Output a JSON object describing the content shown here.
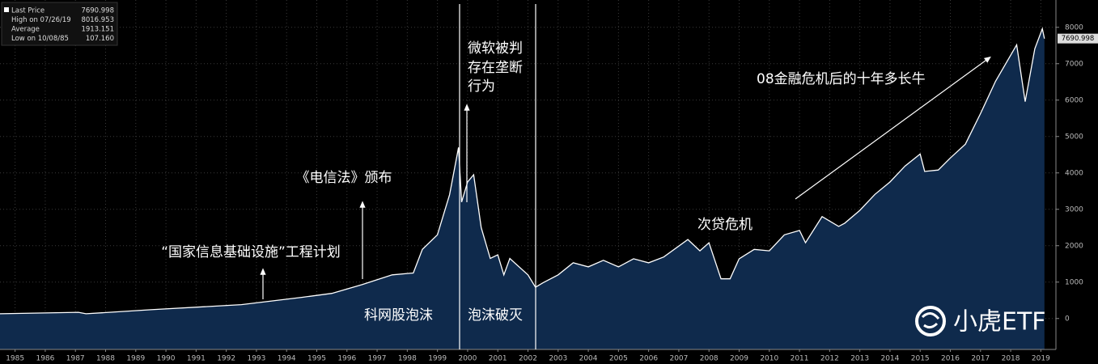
{
  "chart_data": {
    "type": "area",
    "x": [
      1985.0,
      1987.6,
      1987.85,
      1990.0,
      1993.0,
      1995.0,
      1996.0,
      1997.0,
      1998.0,
      1998.7,
      1999.0,
      1999.5,
      1999.9,
      2000.2,
      2000.3,
      2000.5,
      2000.7,
      2000.95,
      2001.25,
      2001.5,
      2001.7,
      2001.9,
      2002.5,
      2002.75,
      2003.0,
      2003.5,
      2004.0,
      2004.5,
      2005.0,
      2005.5,
      2006.0,
      2006.5,
      2007.0,
      2007.8,
      2008.2,
      2008.5,
      2008.9,
      2009.2,
      2009.5,
      2010.0,
      2010.5,
      2011.0,
      2011.5,
      2011.7,
      2012.25,
      2012.8,
      2013.0,
      2013.5,
      2014.0,
      2014.5,
      2015.0,
      2015.5,
      2015.65,
      2016.1,
      2016.5,
      2017.0,
      2017.5,
      2018.0,
      2018.7,
      2018.98,
      2019.3,
      2019.55,
      2019.62
    ],
    "series": [
      {
        "name": "Last Price",
        "color": "#ffffff",
        "values": [
          130,
          170,
          130,
          240,
          380,
          580,
          690,
          930,
          1200,
          1250,
          1900,
          2300,
          3400,
          4700,
          3200,
          3750,
          3950,
          2500,
          1650,
          1750,
          1200,
          1650,
          1200,
          860,
          980,
          1200,
          1530,
          1420,
          1600,
          1420,
          1640,
          1530,
          1690,
          2170,
          1860,
          2080,
          1090,
          1090,
          1640,
          1900,
          1860,
          2300,
          2420,
          2080,
          2800,
          2530,
          2620,
          2970,
          3410,
          3750,
          4190,
          4520,
          4040,
          4080,
          4410,
          4790,
          5630,
          6520,
          7520,
          5960,
          7410,
          7960,
          7690
        ]
      }
    ],
    "fill_color": "#0f2a4c",
    "xlim": [
      1985,
      2020
    ],
    "xticks": [
      {
        "value": 1985.5,
        "label": "1985"
      },
      {
        "value": 1986.5,
        "label": "1986"
      },
      {
        "value": 1987.5,
        "label": "1987"
      },
      {
        "value": 1988.5,
        "label": "1988"
      },
      {
        "value": 1989.5,
        "label": "1989"
      },
      {
        "value": 1990.5,
        "label": "1990"
      },
      {
        "value": 1991.5,
        "label": "1991"
      },
      {
        "value": 1992.5,
        "label": "1992"
      },
      {
        "value": 1993.5,
        "label": "1993"
      },
      {
        "value": 1994.5,
        "label": "1994"
      },
      {
        "value": 1995.5,
        "label": "1995"
      },
      {
        "value": 1996.5,
        "label": "1996"
      },
      {
        "value": 1997.5,
        "label": "1997"
      },
      {
        "value": 1998.5,
        "label": "1998"
      },
      {
        "value": 1999.5,
        "label": "1999"
      },
      {
        "value": 2000.5,
        "label": "2000"
      },
      {
        "value": 2001.5,
        "label": "2001"
      },
      {
        "value": 2002.5,
        "label": "2002"
      },
      {
        "value": 2003.5,
        "label": "2003"
      },
      {
        "value": 2004.5,
        "label": "2004"
      },
      {
        "value": 2005.5,
        "label": "2005"
      },
      {
        "value": 2006.5,
        "label": "2006"
      },
      {
        "value": 2007.5,
        "label": "2007"
      },
      {
        "value": 2008.5,
        "label": "2008"
      },
      {
        "value": 2009.5,
        "label": "2009"
      },
      {
        "value": 2010.5,
        "label": "2010"
      },
      {
        "value": 2011.5,
        "label": "2011"
      },
      {
        "value": 2012.5,
        "label": "2012"
      },
      {
        "value": 2013.5,
        "label": "2013"
      },
      {
        "value": 2014.5,
        "label": "2014"
      },
      {
        "value": 2015.5,
        "label": "2015"
      },
      {
        "value": 2016.5,
        "label": "2016"
      },
      {
        "value": 2017.5,
        "label": "2017"
      },
      {
        "value": 2018.5,
        "label": "2018"
      },
      {
        "value": 2019.5,
        "label": "2019"
      }
    ],
    "ylim": [
      -850,
      8750
    ],
    "yticks": [
      0,
      1000,
      2000,
      3000,
      4000,
      5000,
      6000,
      7000,
      8000
    ],
    "grid": true,
    "stats": {
      "names": [
        "Last Price",
        "High on 07/26/19",
        "Average",
        "Low on 10/08/85"
      ],
      "values": [
        7690.998,
        8016.953,
        1913.151,
        107.16
      ],
      "value_labels": [
        "7690.998",
        "8016.953",
        "1913.151",
        "107.160"
      ]
    },
    "annotations": {
      "nii": "“国家信息基础设施”工程计划",
      "telecom": "《电信法》颁布",
      "microsoft": [
        "微软被判",
        "存在垄断",
        "行为"
      ],
      "bubble": "科网股泡沫",
      "burst": "泡沫破灭",
      "subprime": "次贷危机",
      "bull": "08金融危机后的十年多长牛"
    },
    "logo": "小虎ETF"
  }
}
